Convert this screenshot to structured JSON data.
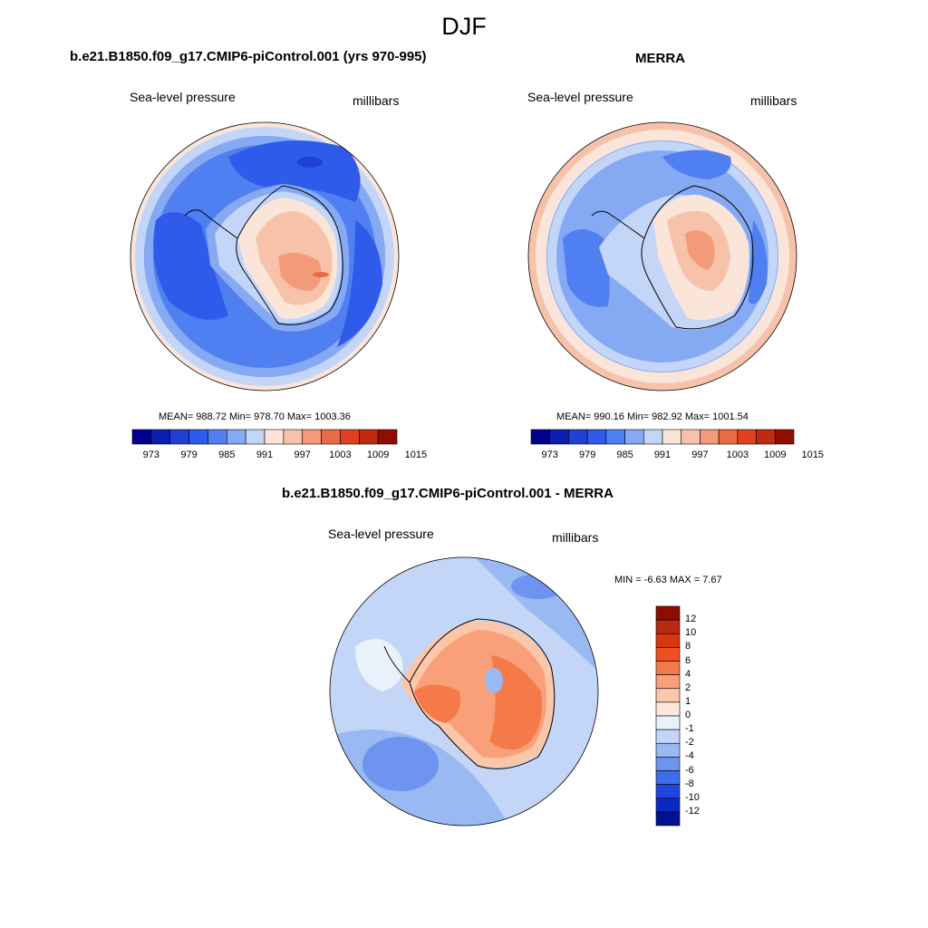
{
  "figure": {
    "season": "DJF"
  },
  "panels": {
    "model": {
      "title": "b.e21.B1850.f09_g17.CMIP6-piControl.001 (yrs 970-995)",
      "left_label": "Sea-level pressure",
      "right_label": "millibars",
      "stats": "MEAN= 988.72  Min= 978.70  Max= 1003.36"
    },
    "obs": {
      "title": "MERRA",
      "left_label": "Sea-level pressure",
      "right_label": "millibars",
      "stats": "MEAN= 990.16  Min= 982.92  Max= 1001.54"
    },
    "diff": {
      "title": "b.e21.B1850.f09_g17.CMIP6-piControl.001 - MERRA",
      "left_label": "Sea-level pressure",
      "right_label": "millibars",
      "stats": "MIN =  -6.63 MAX =   7.67"
    }
  },
  "colorbars": {
    "abs_ticks": [
      "973",
      "979",
      "985",
      "991",
      "997",
      "1003",
      "1009",
      "1015"
    ],
    "abs_colors": [
      "#00008f",
      "#0a1fb0",
      "#1f3fd6",
      "#2e5bea",
      "#4f7ff0",
      "#86a9f4",
      "#c3d6f8",
      "#fbe5d9",
      "#f8c2aa",
      "#f39a78",
      "#ea6a44",
      "#e04020",
      "#c02a10",
      "#8f0d00"
    ],
    "diff_ticks": [
      "12",
      "10",
      "8",
      "6",
      "4",
      "2",
      "1",
      "0",
      "-1",
      "-2",
      "-4",
      "-6",
      "-8",
      "-10",
      "-12"
    ],
    "diff_colors": [
      "#8f0d00",
      "#b52a10",
      "#d8380f",
      "#f04f1f",
      "#f57a4a",
      "#f9a07a",
      "#fbc6aa",
      "#fde7da",
      "#e9f1fb",
      "#c4d6f7",
      "#9ab8f2",
      "#6d94ee",
      "#3f6ce8",
      "#1f47df",
      "#0a28c2",
      "#00128f"
    ]
  },
  "colors": {
    "ocean_deep": "#2e5bea",
    "ocean_mid": "#4f7ff0",
    "ocean_light": "#86a9f4",
    "ocean_pale": "#c3d6f8",
    "land_high": "#ea6a44",
    "land_mid": "#f39a78",
    "land_low": "#f8c2aa",
    "land_pale": "#fbe5d9",
    "coast": "#000000"
  }
}
